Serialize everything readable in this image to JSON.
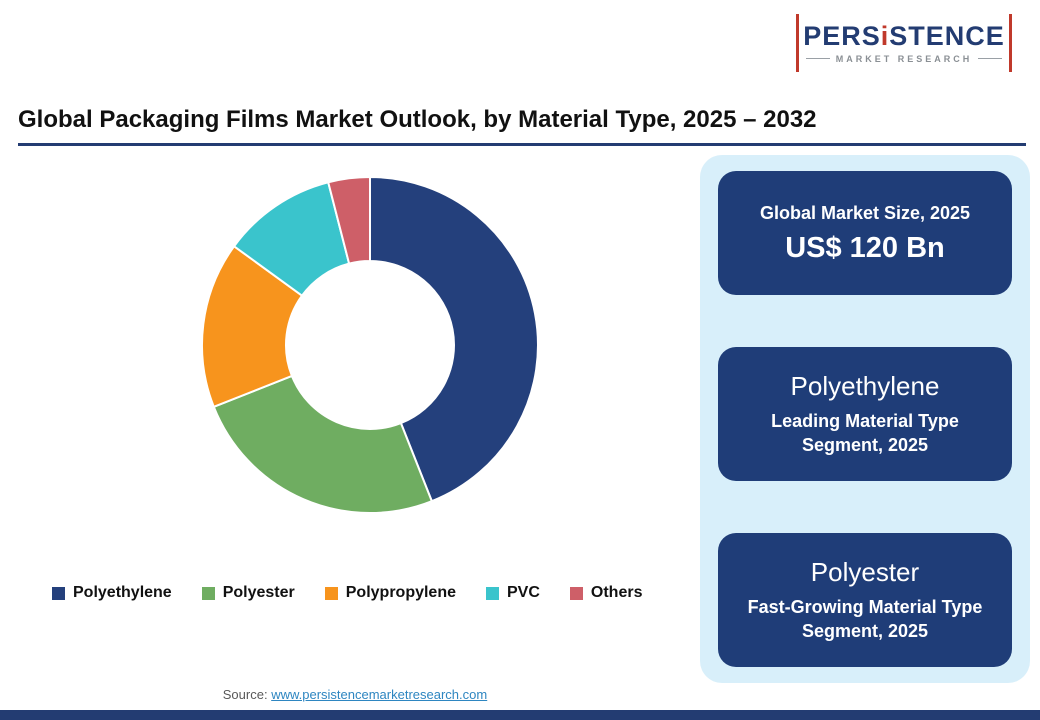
{
  "logo": {
    "brand_pre": "PERS",
    "brand_i": "i",
    "brand_post": "STENCE",
    "subtitle": "MARKET RESEARCH"
  },
  "header": {
    "title": "Global Packaging Films Market Outlook, by Material Type, 2025 – 2032"
  },
  "chart_data": {
    "type": "pie",
    "subtype": "donut",
    "title": "Global Packaging Films Market Outlook, by Material Type, 2025 – 2032",
    "categories": [
      "Polyethylene",
      "Polyester",
      "Polypropylene",
      "PVC",
      "Others"
    ],
    "values": [
      44,
      25,
      16,
      11,
      4
    ],
    "values_note": "percent shares estimated from arc angles; slices are unlabeled in the image",
    "colors": [
      "#24407c",
      "#6fad61",
      "#f7941d",
      "#3ac4cc",
      "#ce5f68"
    ],
    "start_angle_deg": -90,
    "direction": "clockwise",
    "inner_radius_ratio": 0.5,
    "legend_position": "bottom"
  },
  "panel": {
    "cards": [
      {
        "line1": "Global Market Size, 2025",
        "line2": "US$ 120 Bn"
      },
      {
        "line1": "Polyethylene",
        "line2": "Leading Material Type Segment, 2025"
      },
      {
        "line1": "Polyester",
        "line2": "Fast-Growing Material Type Segment, 2025"
      }
    ]
  },
  "footer": {
    "source_label": "Source: ",
    "source_link": "www.persistencemarketresearch.com"
  }
}
